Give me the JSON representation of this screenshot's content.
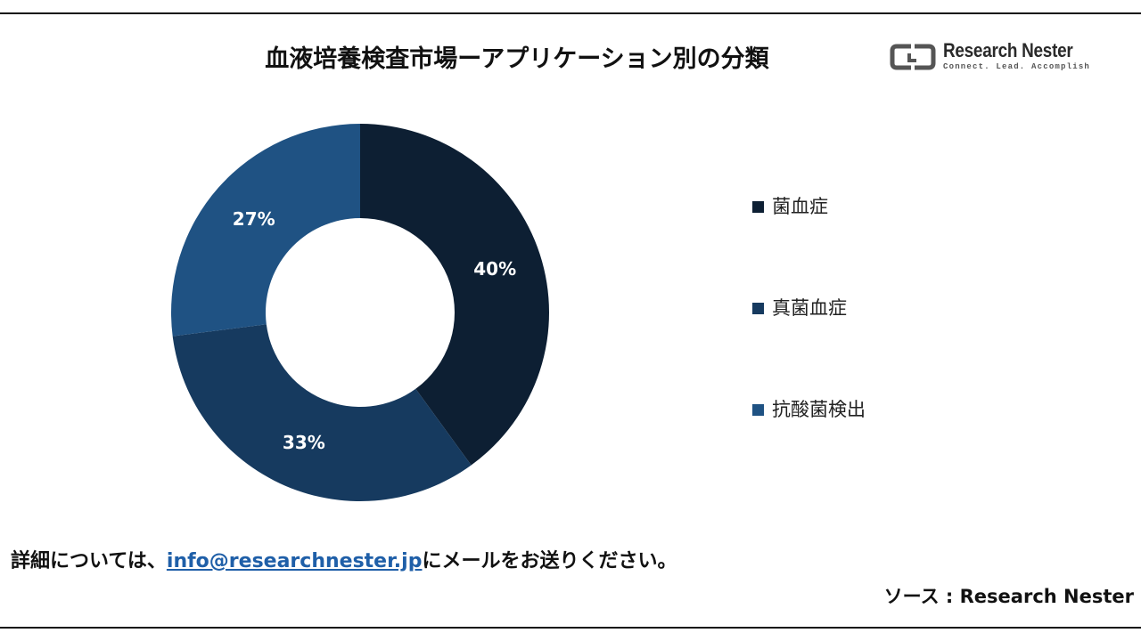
{
  "header": {
    "title": "血液培養検査市場ーアプリケーション別の分類",
    "logo": {
      "name": "Research Nester",
      "tagline": "Connect. Lead. Accomplish"
    }
  },
  "chart_data": {
    "type": "pie",
    "title": "血液培養検査市場ーアプリケーション別の分類",
    "categories": [
      "菌血症",
      "真菌血症",
      "抗酸菌検出"
    ],
    "values": [
      40,
      33,
      27
    ],
    "labels": [
      "40%",
      "33%",
      "27%"
    ],
    "colors": [
      "#0d1f33",
      "#163a5f",
      "#1f5283"
    ],
    "donut": true,
    "legend": "right"
  },
  "footer": {
    "contact_prefix": "詳細については、",
    "contact_email": "info@researchnester.jp",
    "contact_suffix": "にメールをお送りください。",
    "source": "ソース  : Research Nester"
  }
}
